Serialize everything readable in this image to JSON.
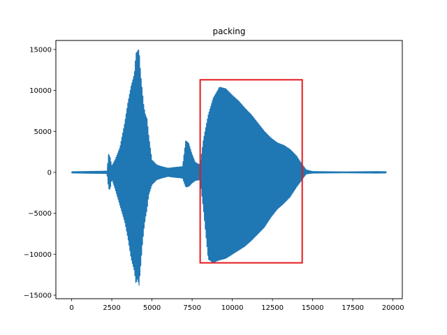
{
  "chart_data": {
    "type": "line",
    "title": "packing",
    "xlabel": "",
    "ylabel": "",
    "xlim": [
      -980,
      20580
    ],
    "ylim": [
      -15430,
      16100
    ],
    "x_ticks": [
      0,
      2500,
      5000,
      7500,
      10000,
      12500,
      15000,
      17500,
      20000
    ],
    "x_tick_labels": [
      "0",
      "2500",
      "5000",
      "7500",
      "10000",
      "12500",
      "15000",
      "17500",
      "20000"
    ],
    "y_ticks": [
      -15000,
      -10000,
      -5000,
      0,
      5000,
      10000,
      15000
    ],
    "y_tick_labels": [
      "−15000",
      "−10000",
      "−5000",
      "0",
      "5000",
      "10000",
      "15000"
    ],
    "grid": false,
    "series": [
      {
        "color": "#1f77b4",
        "envelope": {
          "x": [
            0,
            2200,
            2300,
            2400,
            2500,
            2700,
            3000,
            3300,
            3500,
            3700,
            3900,
            4000,
            4100,
            4200,
            4300,
            4400,
            4500,
            4600,
            4700,
            4800,
            5000,
            5300,
            5600,
            6000,
            6400,
            6900,
            7100,
            7300,
            7500,
            7700,
            8000,
            8200,
            8500,
            8800,
            9200,
            9600,
            10000,
            10400,
            10800,
            11200,
            11600,
            12000,
            12400,
            12800,
            13200,
            13600,
            14000,
            14300,
            14600,
            15000,
            17000,
            19000,
            19600
          ],
          "upper": [
            80,
            150,
            2300,
            1800,
            800,
            1500,
            3000,
            6000,
            8500,
            10500,
            12000,
            14500,
            14800,
            15000,
            12000,
            10000,
            8000,
            7000,
            6500,
            4500,
            1500,
            900,
            700,
            500,
            600,
            700,
            3900,
            3500,
            2200,
            1200,
            900,
            4000,
            7000,
            9000,
            10400,
            10200,
            9400,
            8700,
            7800,
            7000,
            6000,
            5000,
            4200,
            3600,
            3300,
            2800,
            2000,
            1100,
            300,
            100,
            60,
            100,
            80
          ],
          "lower": [
            -80,
            -150,
            -2000,
            -2100,
            -800,
            -2000,
            -4000,
            -6000,
            -8000,
            -10500,
            -12000,
            -13600,
            -13000,
            -13800,
            -11500,
            -9000,
            -7000,
            -5500,
            -4500,
            -2800,
            -1500,
            -900,
            -700,
            -500,
            -600,
            -700,
            -1800,
            -1700,
            -1300,
            -1000,
            -900,
            -4500,
            -10600,
            -11000,
            -10700,
            -10500,
            -10000,
            -9500,
            -9000,
            -8300,
            -7500,
            -6700,
            -5500,
            -4500,
            -3800,
            -3000,
            -1800,
            -1000,
            -200,
            -100,
            -60,
            -100,
            -80
          ]
        }
      }
    ],
    "annotations": [
      {
        "type": "rectangle",
        "color": "#e41a1c",
        "x": [
          8000,
          14350
        ],
        "y": [
          -11050,
          11300
        ]
      }
    ]
  }
}
